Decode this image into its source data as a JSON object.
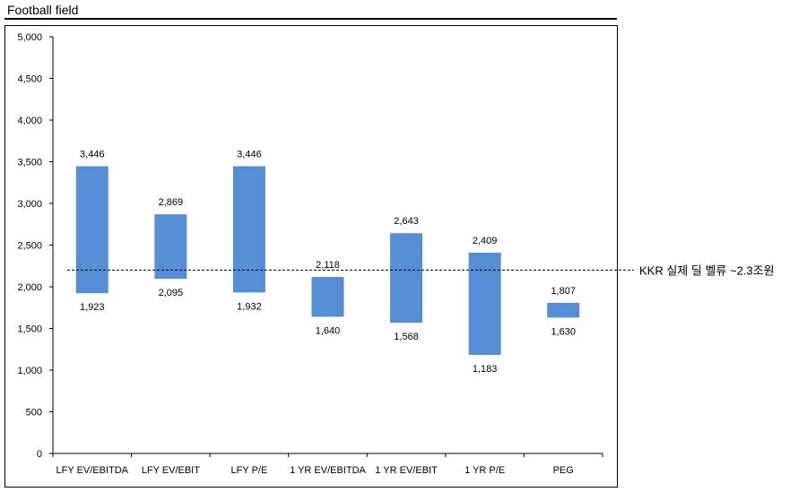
{
  "title": "Football field",
  "chart_data": {
    "type": "bar",
    "subtype": "floating-range",
    "categories": [
      "LFY EV/EBITDA",
      "LFY EV/EBIT",
      "LFY P/E",
      "1 YR EV/EBITDA",
      "1 YR EV/EBIT",
      "1 YR P/E",
      "PEG"
    ],
    "low": [
      1923,
      2095,
      1932,
      1640,
      1568,
      1183,
      1630
    ],
    "high": [
      3446,
      2869,
      3446,
      2118,
      2643,
      2409,
      1807
    ],
    "low_labels": [
      "1,923",
      "2,095",
      "1,932",
      "1,640",
      "1,568",
      "1,183",
      "1,630"
    ],
    "high_labels": [
      "3,446",
      "2,869",
      "3,446",
      "2,118",
      "2,643",
      "2,409",
      "1,807"
    ],
    "ylim": [
      0,
      5000
    ],
    "yticks": [
      0,
      500,
      1000,
      1500,
      2000,
      2500,
      3000,
      3500,
      4000,
      4500,
      5000
    ],
    "ytick_labels": [
      "0",
      "500",
      "1,000",
      "1,500",
      "2,000",
      "2,500",
      "3,000",
      "3,500",
      "4,000",
      "4,500",
      "5,000"
    ],
    "grid": false,
    "bar_color": "#558ED5",
    "reference_line": {
      "value": 2200,
      "style": "dashed",
      "label": "KKR 실제 딜 벨류 ~2.3조원"
    }
  }
}
